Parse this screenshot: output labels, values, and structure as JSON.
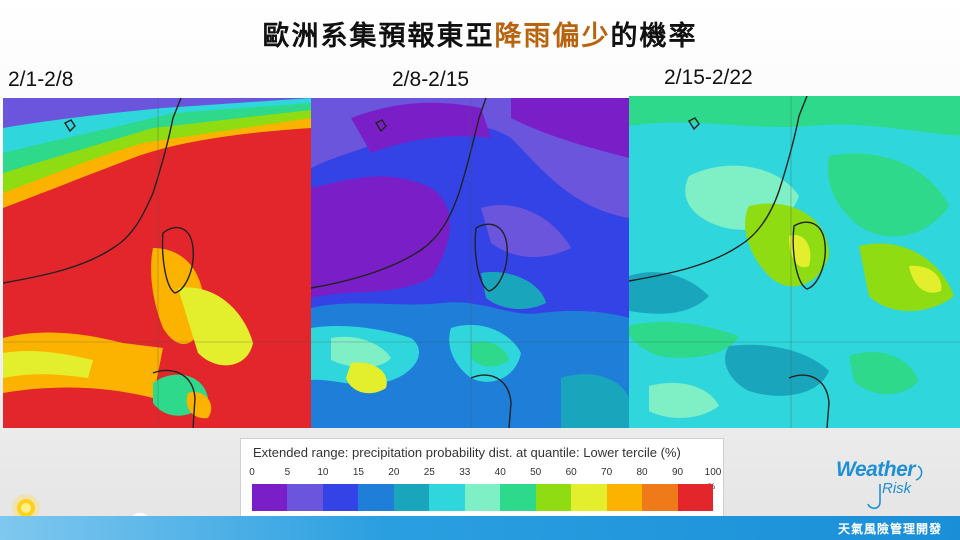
{
  "title": {
    "part1": "歐洲系集預報東亞",
    "highlight": "降雨偏少",
    "part2": "的機率"
  },
  "periods": [
    "2/1-2/8",
    "2/8-2/15",
    "2/15-2/22"
  ],
  "legend": {
    "title": "Extended range: precipitation probability dist. at quantile: Lower tercile (%)",
    "ticks": [
      "0",
      "5",
      "10",
      "15",
      "20",
      "25",
      "33",
      "40",
      "50",
      "60",
      "70",
      "80",
      "90",
      "100"
    ],
    "unit": "%",
    "colors": [
      "#7a1fc8",
      "#6a55dc",
      "#3343e6",
      "#1f7ed8",
      "#19a6bc",
      "#2fd6dc",
      "#7fefc6",
      "#2ed98c",
      "#8fdc12",
      "#e3ef2c",
      "#fcb300",
      "#ef7a1a",
      "#e3262c"
    ]
  },
  "footer": {
    "text": "天氣風險管理開發"
  },
  "logo": {
    "line1": "Weather",
    "line2": "Risk"
  },
  "colors": {
    "accent": "#1f8fd6",
    "title_highlight": "#b8640f",
    "footer": "#2a9fe0"
  }
}
